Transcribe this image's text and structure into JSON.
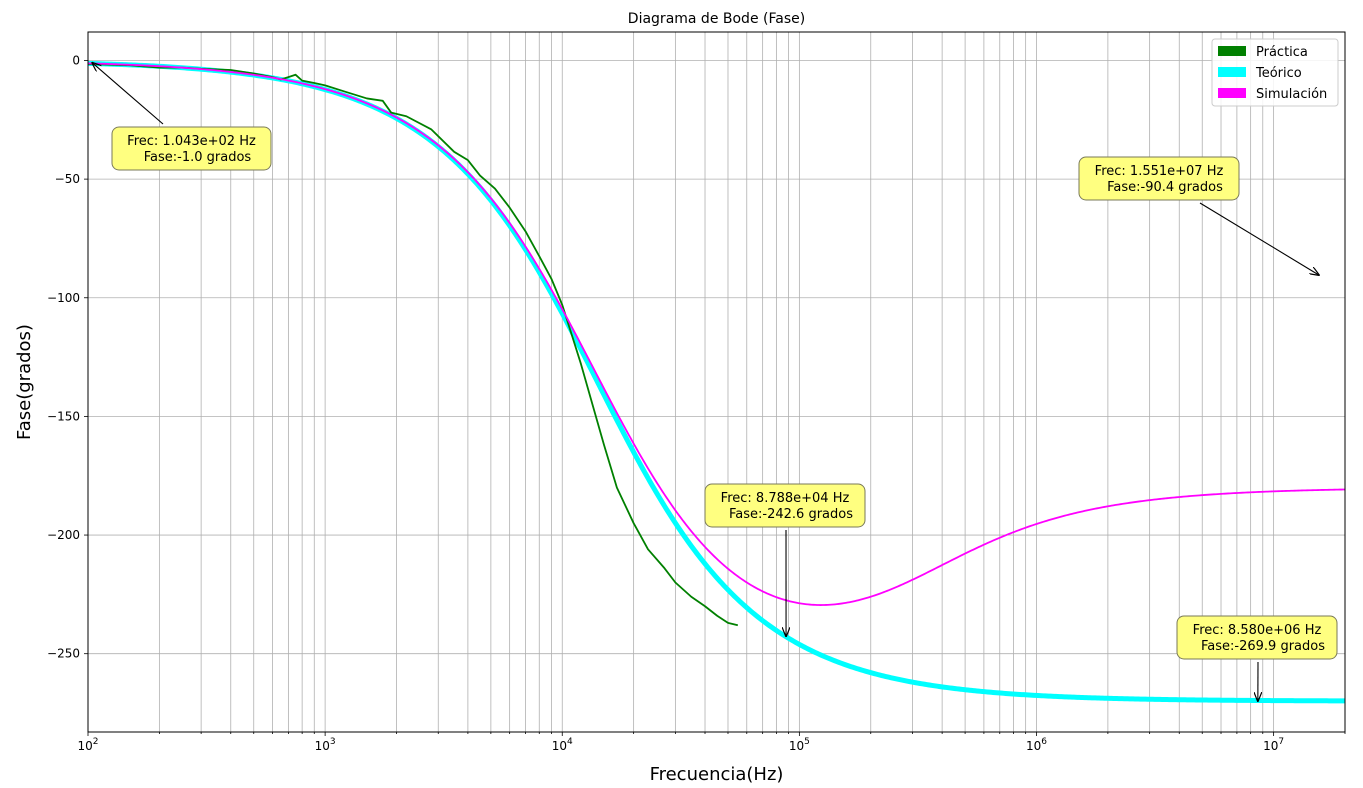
{
  "chart_data": {
    "type": "line",
    "title": "Diagrama de Bode (Fase)",
    "xlabel": "Frecuencia(Hz)",
    "ylabel": "Fase(grados)",
    "xscale": "log",
    "xlim": [
      100,
      20000000
    ],
    "ylim": [
      -283,
      12
    ],
    "grid": true,
    "legend_position": "top-right",
    "x_ticks": [
      {
        "value": 100,
        "base": "10",
        "exp": "2"
      },
      {
        "value": 1000,
        "base": "10",
        "exp": "3"
      },
      {
        "value": 10000,
        "base": "10",
        "exp": "4"
      },
      {
        "value": 100000,
        "base": "10",
        "exp": "5"
      },
      {
        "value": 1000000,
        "base": "10",
        "exp": "6"
      },
      {
        "value": 10000000,
        "base": "10",
        "exp": "7"
      }
    ],
    "y_ticks": [
      {
        "value": 0,
        "label": "0"
      },
      {
        "value": -50,
        "label": "−50"
      },
      {
        "value": -100,
        "label": "−100"
      },
      {
        "value": -150,
        "label": "−150"
      },
      {
        "value": -200,
        "label": "−200"
      },
      {
        "value": -250,
        "label": "−250"
      }
    ],
    "series": [
      {
        "name": "Práctica",
        "color": "#008000",
        "x": [
          100,
          150,
          200,
          250,
          300,
          400,
          500,
          600,
          650,
          700,
          750,
          800,
          900,
          1000,
          1200,
          1500,
          1750,
          1900,
          2200,
          2800,
          3500,
          4000,
          4500,
          5200,
          6000,
          7000,
          8000,
          9000,
          10000,
          11000,
          12000,
          13500,
          15000,
          17000,
          20000,
          23000,
          27000,
          30000,
          35000,
          40000,
          45000,
          50000,
          55000
        ],
        "values": [
          -1.5,
          -2,
          -3,
          -3,
          -3.5,
          -4,
          -5.5,
          -7,
          -8,
          -7,
          -6,
          -8.5,
          -9.5,
          -10.5,
          -13,
          -16,
          -17,
          -22,
          -23.5,
          -29,
          -38.5,
          -42,
          -48.5,
          -54,
          -62,
          -72,
          -82.5,
          -92,
          -103,
          -116,
          -128,
          -146,
          -162,
          -180,
          -195,
          -206,
          -214,
          -220,
          -226,
          -230,
          -234,
          -237,
          -238
        ]
      },
      {
        "name": "Teórico",
        "color": "#00ffff",
        "model": "theoretical"
      },
      {
        "name": "Simulación",
        "color": "#ff00ff",
        "model": "simulation"
      }
    ],
    "annotations": [
      {
        "line1": "Frec: 1.043e+02  Hz",
        "line2": "Fase:-1.0 grados",
        "x": 104.3,
        "y": -1.0
      },
      {
        "line1": "Frec: 1.551e+07  Hz",
        "line2": "Fase:-90.4 grados",
        "x": 15510000,
        "y": -90.4
      },
      {
        "line1": "Frec: 8.788e+04  Hz",
        "line2": "Fase:-242.6 grados",
        "x": 87880,
        "y": -242.6
      },
      {
        "line1": "Frec: 8.580e+06  Hz",
        "line2": "Fase:-269.9 grados",
        "x": 8580000,
        "y": -269.9
      }
    ]
  }
}
